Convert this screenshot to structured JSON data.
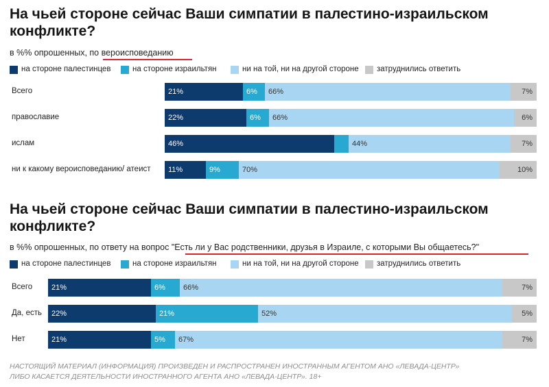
{
  "colors": {
    "palestinians": "#0d3b6e",
    "israelis": "#27a9d1",
    "neither": "#a8d6f2",
    "difficult": "#c8c8c8",
    "underline": "#e3202c"
  },
  "legend": [
    {
      "key": "palestinians",
      "label": "на стороне палестинцев"
    },
    {
      "key": "israelis",
      "label": "на стороне израильтян"
    },
    {
      "key": "neither",
      "label": "ни на той, ни на другой стороне"
    },
    {
      "key": "difficult",
      "label": "затруднились ответить"
    }
  ],
  "footer": {
    "line1": "НАСТОЯЩИЙ МАТЕРИАЛ (ИНФОРМАЦИЯ) ПРОИЗВЕДЕН И РАСПРОСТРАНЕН ИНОСТРАННЫМ АГЕНТОМ АНО «ЛЕВАДА-ЦЕНТР»",
    "line2": "ЛИБО КАСАЕТСЯ ДЕЯТЕЛЬНОСТИ ИНОСТРАННОГО АГЕНТА АНО «ЛЕВАДА-ЦЕНТР». 18+"
  },
  "chart_data": [
    {
      "type": "bar",
      "stacked": true,
      "orientation": "horizontal",
      "title_line1": "На чьей стороне сейчас Ваши симпатии в палестино-израильском",
      "title_line2": "конфликте?",
      "subtitle_prefix": "в %% опрошенных, ",
      "subtitle_emph": "по вероисповеданию",
      "categories": [
        "Всего",
        "православие",
        "ислам",
        "ни к какому вероисповеданию/ атеист"
      ],
      "series": [
        {
          "key": "palestinians",
          "name": "на стороне палестинцев",
          "values": [
            21,
            22,
            46,
            11
          ],
          "labels": [
            "21%",
            "22%",
            "46%",
            "11%"
          ]
        },
        {
          "key": "israelis",
          "name": "на стороне израильтян",
          "values": [
            6,
            6,
            4,
            9
          ],
          "labels": [
            "6%",
            "6%",
            "",
            "9%"
          ]
        },
        {
          "key": "neither",
          "name": "ни на той, ни на другой стороне",
          "values": [
            66,
            66,
            44,
            70
          ],
          "labels": [
            "66%",
            "66%",
            "44%",
            "70%"
          ]
        },
        {
          "key": "difficult",
          "name": "затруднились ответить",
          "values": [
            7,
            6,
            7,
            10
          ],
          "labels": [
            "7%",
            "6%",
            "7%",
            "10%"
          ]
        }
      ]
    },
    {
      "type": "bar",
      "stacked": true,
      "orientation": "horizontal",
      "title_line1": "На чьей стороне сейчас Ваши симпатии в палестино-израильском",
      "title_line2": "конфликте?",
      "subtitle_prefix": "в %% опрошенных, по ответу на вопрос ",
      "subtitle_emph": "\"Есть ли у Вас родственники, друзья в Израиле, с которыми Вы общаетесь?\"",
      "categories": [
        "Всего",
        "Да, есть",
        "Нет"
      ],
      "series": [
        {
          "key": "palestinians",
          "name": "на стороне палестинцев",
          "values": [
            21,
            22,
            21
          ],
          "labels": [
            "21%",
            "22%",
            "21%"
          ]
        },
        {
          "key": "israelis",
          "name": "на стороне израильтян",
          "values": [
            6,
            21,
            5
          ],
          "labels": [
            "6%",
            "21%",
            "5%"
          ]
        },
        {
          "key": "neither",
          "name": "ни на той, ни на другой стороне",
          "values": [
            66,
            52,
            67
          ],
          "labels": [
            "66%",
            "52%",
            "67%"
          ]
        },
        {
          "key": "difficult",
          "name": "затруднились ответить",
          "values": [
            7,
            5,
            7
          ],
          "labels": [
            "7%",
            "5%",
            "7%"
          ]
        }
      ]
    }
  ]
}
